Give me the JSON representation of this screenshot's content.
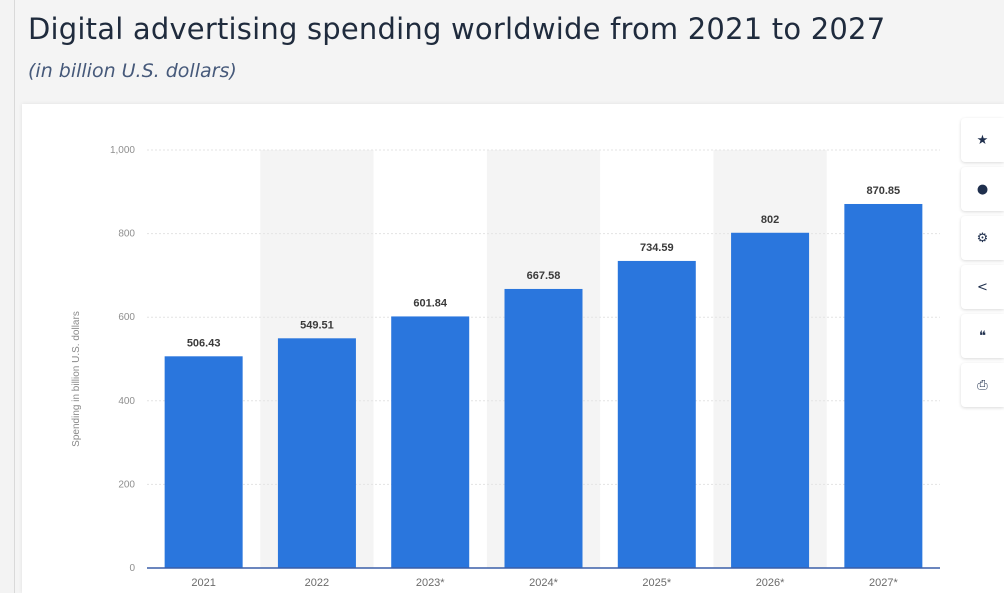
{
  "header": {
    "title": "Digital advertising spending worldwide from 2021 to 2027",
    "subtitle": "(in billion U.S. dollars)"
  },
  "toolbar": {
    "items": [
      {
        "icon": "star-icon",
        "glyph": "★"
      },
      {
        "icon": "bell-icon",
        "glyph": "●"
      },
      {
        "icon": "gear-icon",
        "glyph": "⚙"
      },
      {
        "icon": "share-icon",
        "glyph": "<"
      },
      {
        "icon": "quote-icon",
        "glyph": "❝"
      },
      {
        "icon": "print-icon",
        "glyph": "⎙"
      }
    ]
  },
  "chart_data": {
    "type": "bar",
    "categories": [
      "2021",
      "2022",
      "2023*",
      "2024*",
      "2025*",
      "2026*",
      "2027*"
    ],
    "values": [
      506.43,
      549.51,
      601.84,
      667.58,
      734.59,
      802,
      870.85
    ],
    "value_labels": [
      "506.43",
      "549.51",
      "601.84",
      "667.58",
      "734.59",
      "802",
      "870.85"
    ],
    "ylabel": "Spending in billion U.S. dollars",
    "ylim": [
      0,
      1000
    ],
    "yticks": [
      0,
      200,
      400,
      600,
      800,
      1000
    ],
    "ytick_labels": [
      "0",
      "200",
      "400",
      "600",
      "800",
      "1,000"
    ],
    "grid": true,
    "bar_color": "#2a76dd",
    "band_color": "#f4f4f4",
    "axis_color": "#3a5fa8"
  }
}
